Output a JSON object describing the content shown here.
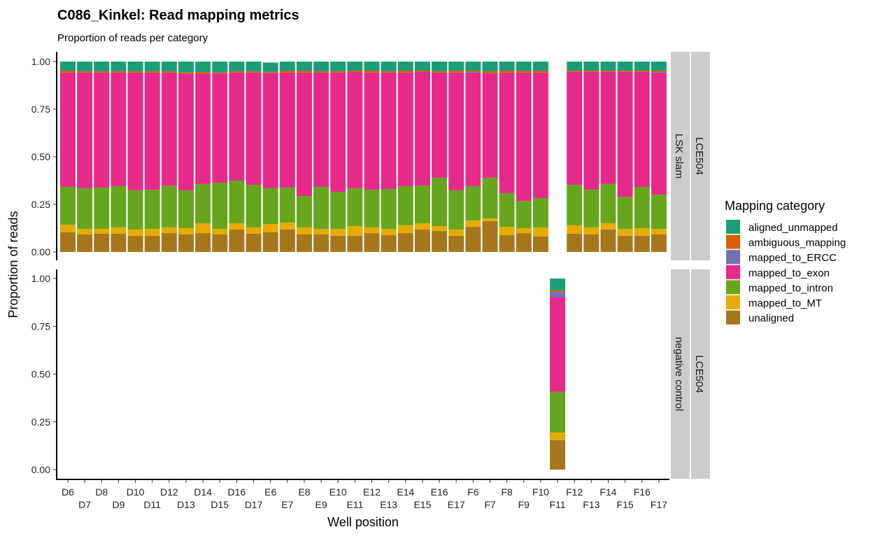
{
  "chart_data": {
    "type": "bar",
    "stacked": true,
    "title": "C086_Kinkel: Read mapping metrics",
    "subtitle": "Proportion of reads per category",
    "xlabel": "Well position",
    "ylabel": "Proportion of reads",
    "ylim": [
      0,
      1
    ],
    "yticks": [
      "0.00",
      "0.25",
      "0.50",
      "0.75",
      "1.00"
    ],
    "legend_title": "Mapping category",
    "legend_position": "right",
    "grid": false,
    "categories": [
      "D6",
      "D7",
      "D8",
      "D9",
      "D10",
      "D11",
      "D12",
      "D13",
      "D14",
      "D15",
      "D16",
      "D17",
      "E6",
      "E7",
      "E8",
      "E9",
      "E10",
      "E11",
      "E12",
      "E13",
      "E14",
      "E15",
      "E16",
      "E17",
      "F6",
      "F7",
      "F8",
      "F9",
      "F10",
      "F11",
      "F12",
      "F13",
      "F14",
      "F15",
      "F16",
      "F17"
    ],
    "series_order": [
      "aligned_unmapped",
      "ambiguous_mapping",
      "mapped_to_ERCC",
      "mapped_to_exon",
      "mapped_to_intron",
      "mapped_to_MT",
      "unaligned"
    ],
    "colors": {
      "aligned_unmapped": "#1B9E77",
      "ambiguous_mapping": "#D95F02",
      "mapped_to_ERCC": "#7570B3",
      "mapped_to_exon": "#E7298A",
      "mapped_to_intron": "#66A61E",
      "mapped_to_MT": "#E6AB02",
      "unaligned": "#A6761D"
    },
    "facets": [
      {
        "strip_inner": "LSK slam",
        "strip_outer": "LCE504",
        "series": [
          {
            "name": "unaligned",
            "values": [
              0.103,
              0.092,
              0.096,
              0.096,
              0.085,
              0.085,
              0.099,
              0.092,
              0.099,
              0.092,
              0.118,
              0.096,
              0.103,
              0.118,
              0.092,
              0.092,
              0.085,
              0.085,
              0.099,
              0.088,
              0.099,
              0.118,
              0.11,
              0.085,
              0.132,
              0.162,
              0.088,
              0.099,
              0.081,
              null,
              0.096,
              0.092,
              0.118,
              0.085,
              0.085,
              0.092
            ]
          },
          {
            "name": "mapped_to_MT",
            "values": [
              0.04,
              0.029,
              0.025,
              0.033,
              0.033,
              0.036,
              0.03,
              0.033,
              0.052,
              0.029,
              0.033,
              0.033,
              0.044,
              0.036,
              0.037,
              0.029,
              0.036,
              0.051,
              0.03,
              0.033,
              0.041,
              0.033,
              0.026,
              0.033,
              0.033,
              0.014,
              0.044,
              0.026,
              0.048,
              null,
              0.044,
              0.037,
              0.033,
              0.036,
              0.04,
              0.029
            ]
          },
          {
            "name": "mapped_to_intron",
            "values": [
              0.199,
              0.214,
              0.217,
              0.217,
              0.206,
              0.206,
              0.22,
              0.199,
              0.206,
              0.243,
              0.224,
              0.224,
              0.188,
              0.184,
              0.165,
              0.221,
              0.195,
              0.199,
              0.198,
              0.21,
              0.206,
              0.198,
              0.254,
              0.206,
              0.181,
              0.214,
              0.177,
              0.143,
              0.154,
              null,
              0.213,
              0.198,
              0.206,
              0.169,
              0.217,
              0.18
            ]
          },
          {
            "name": "mapped_to_exon",
            "values": [
              0.6,
              0.607,
              0.604,
              0.596,
              0.618,
              0.615,
              0.593,
              0.611,
              0.581,
              0.574,
              0.567,
              0.589,
              0.605,
              0.604,
              0.648,
              0.6,
              0.626,
              0.61,
              0.615,
              0.611,
              0.596,
              0.596,
              0.552,
              0.618,
              0.596,
              0.548,
              0.633,
              0.674,
              0.659,
              null,
              0.593,
              0.619,
              0.589,
              0.656,
              0.604,
              0.641
            ]
          },
          {
            "name": "mapped_to_ERCC",
            "values": [
              0,
              0,
              0,
              0,
              0,
              0,
              0,
              0,
              0,
              0.002,
              0,
              0,
              0.002,
              0,
              0,
              0,
              0,
              0,
              0,
              0,
              0,
              0,
              0,
              0,
              0.003,
              0,
              0,
              0,
              0,
              null,
              0,
              0,
              0,
              0,
              0,
              0.003
            ]
          },
          {
            "name": "ambiguous_mapping",
            "values": [
              0.01,
              0.007,
              0.007,
              0.007,
              0.007,
              0.007,
              0.007,
              0.007,
              0.007,
              0.005,
              0.007,
              0.007,
              0.005,
              0.01,
              0.01,
              0.007,
              0.007,
              0.007,
              0.01,
              0.007,
              0.01,
              0.007,
              0.007,
              0.01,
              0.007,
              0.011,
              0.01,
              0.01,
              0.01,
              null,
              0.006,
              0.006,
              0.006,
              0.006,
              0.006,
              0.007
            ]
          },
          {
            "name": "aligned_unmapped",
            "values": [
              0.048,
              0.051,
              0.051,
              0.051,
              0.051,
              0.051,
              0.051,
              0.058,
              0.055,
              0.055,
              0.051,
              0.051,
              0.048,
              0.048,
              0.048,
              0.051,
              0.051,
              0.048,
              0.048,
              0.051,
              0.048,
              0.048,
              0.051,
              0.048,
              0.048,
              0.051,
              0.048,
              0.048,
              0.048,
              null,
              0.048,
              0.048,
              0.048,
              0.048,
              0.048,
              0.048
            ]
          }
        ]
      },
      {
        "strip_inner": "negative control",
        "strip_outer": "LCE504",
        "wells": [
          "F11"
        ],
        "series": [
          {
            "name": "unaligned",
            "values": [
              0.154
            ]
          },
          {
            "name": "mapped_to_MT",
            "values": [
              0.04
            ]
          },
          {
            "name": "mapped_to_intron",
            "values": [
              0.213
            ]
          },
          {
            "name": "mapped_to_exon",
            "values": [
              0.494
            ]
          },
          {
            "name": "mapped_to_ERCC",
            "values": [
              0.029
            ]
          },
          {
            "name": "ambiguous_mapping",
            "values": [
              0.008
            ]
          },
          {
            "name": "aligned_unmapped",
            "values": [
              0.062
            ]
          }
        ]
      }
    ]
  }
}
